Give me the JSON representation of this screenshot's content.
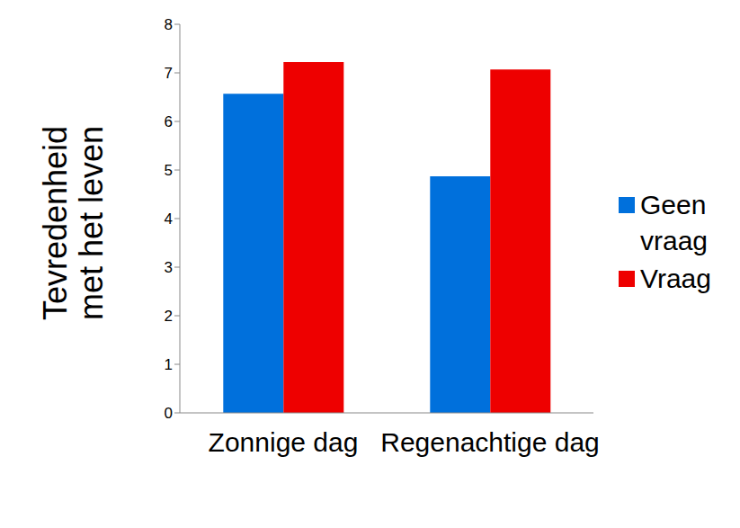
{
  "chart_data": {
    "type": "bar",
    "y_label": "Tevredenheid met het leven",
    "categories": [
      "Zonnige dag",
      "Regenachtige dag"
    ],
    "series": [
      {
        "name": "Geen vraag",
        "color": "#0070dc",
        "values": [
          6.57,
          4.87
        ]
      },
      {
        "name": "Vraag",
        "color": "#ee0000",
        "values": [
          7.22,
          7.07
        ]
      }
    ],
    "ylim": [
      0,
      8
    ],
    "yticks": [
      0,
      1,
      2,
      3,
      4,
      5,
      6,
      7,
      8
    ],
    "grid": false,
    "legend": "right"
  }
}
